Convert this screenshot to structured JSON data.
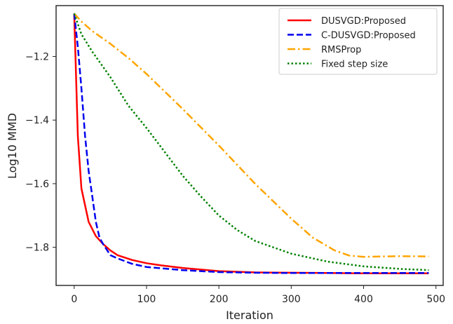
{
  "chart_data": {
    "type": "line",
    "title": "",
    "xlabel": "Iteration",
    "ylabel": "Log10 MMD",
    "xlim": [
      -25,
      510
    ],
    "ylim": [
      -1.92,
      -1.04
    ],
    "xticks": [
      0,
      100,
      200,
      300,
      400,
      500
    ],
    "yticks": [
      -1.2,
      -1.4,
      -1.6,
      -1.8
    ],
    "grid": false,
    "legend": "top-right",
    "series": [
      {
        "name": "DUSVGD:Proposed",
        "color": "#ff0000",
        "dash": "solid",
        "x": [
          0,
          5,
          10,
          20,
          30,
          40,
          50,
          60,
          80,
          100,
          120,
          150,
          200,
          250,
          300,
          350,
          400,
          450,
          490
        ],
        "y": [
          -1.065,
          -1.45,
          -1.615,
          -1.72,
          -1.765,
          -1.79,
          -1.81,
          -1.825,
          -1.84,
          -1.85,
          -1.857,
          -1.865,
          -1.875,
          -1.879,
          -1.88,
          -1.881,
          -1.882,
          -1.882,
          -1.882
        ]
      },
      {
        "name": "C-DUSVGD:Proposed",
        "color": "#0000ee",
        "dash": "dashed",
        "x": [
          0,
          5,
          10,
          15,
          20,
          25,
          30,
          35,
          40,
          50,
          60,
          80,
          100,
          150,
          200,
          250,
          300,
          400,
          490
        ],
        "y": [
          -1.065,
          -1.17,
          -1.3,
          -1.45,
          -1.56,
          -1.64,
          -1.72,
          -1.77,
          -1.79,
          -1.825,
          -1.835,
          -1.852,
          -1.862,
          -1.872,
          -1.878,
          -1.88,
          -1.881,
          -1.881,
          -1.881
        ]
      },
      {
        "name": "RMSProp",
        "color": "#ffa500",
        "dash": "dashdot",
        "x": [
          0,
          10,
          25,
          50,
          75,
          100,
          150,
          200,
          250,
          300,
          330,
          360,
          380,
          400,
          450,
          490
        ],
        "y": [
          -1.065,
          -1.09,
          -1.12,
          -1.16,
          -1.205,
          -1.255,
          -1.365,
          -1.48,
          -1.6,
          -1.71,
          -1.77,
          -1.81,
          -1.826,
          -1.83,
          -1.828,
          -1.829
        ]
      },
      {
        "name": "Fixed step size",
        "color": "#008000",
        "dash": "dotted",
        "x": [
          0,
          10,
          25,
          50,
          75,
          100,
          125,
          150,
          175,
          200,
          225,
          250,
          300,
          350,
          400,
          450,
          490
        ],
        "y": [
          -1.065,
          -1.13,
          -1.185,
          -1.265,
          -1.355,
          -1.425,
          -1.5,
          -1.575,
          -1.64,
          -1.7,
          -1.745,
          -1.78,
          -1.82,
          -1.845,
          -1.86,
          -1.868,
          -1.872
        ]
      }
    ]
  }
}
